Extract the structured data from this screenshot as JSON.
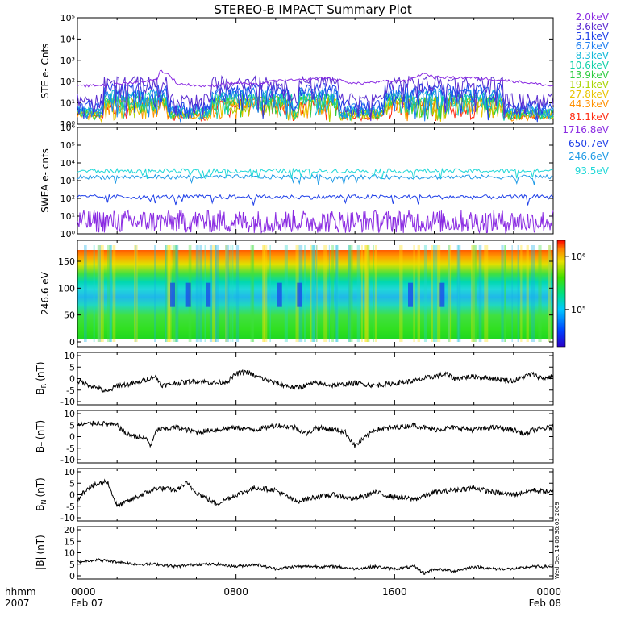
{
  "title": "STEREO-B IMPACT Summary Plot",
  "time_axis": {
    "corner_labels": [
      "hhmm",
      "2007"
    ],
    "ticks": [
      {
        "hhmm": "0000",
        "date": "Feb 07",
        "hour": 0
      },
      {
        "hhmm": "0800",
        "date": "",
        "hour": 8
      },
      {
        "hhmm": "1600",
        "date": "",
        "hour": 16
      },
      {
        "hhmm": "0000",
        "date": "Feb 08",
        "hour": 24
      }
    ],
    "range_hours": [
      0,
      24
    ]
  },
  "timestamp": "Wed Dec 14 06:30:03 2009",
  "colors": {
    "ste": [
      "#8a2be2",
      "#5a2bd0",
      "#1e3fe8",
      "#1e7ef0",
      "#10b8d8",
      "#12d0a8",
      "#2ecc40",
      "#a8d400",
      "#e8c400",
      "#ff9000",
      "#ff2a10"
    ],
    "swea": [
      "#8a2be2",
      "#1e3fe8",
      "#1e9ae6",
      "#22d8d8"
    ],
    "mag": "#000000"
  },
  "chart_data": [
    {
      "type": "line",
      "panel": "ste",
      "ylabel": "STE e- Cnts",
      "yscale": "log",
      "ylim": [
        1,
        100000
      ],
      "yticks": [
        "10⁰",
        "10¹",
        "10²",
        "10³",
        "10⁴",
        "10⁵"
      ],
      "series": [
        {
          "name": "2.0keV",
          "baseline": 70,
          "x": [
            0,
            2,
            4,
            4.2,
            5,
            6.5,
            7,
            8,
            9,
            10,
            11.5,
            12.5,
            14,
            16.8,
            17.5,
            18,
            20,
            24
          ],
          "y": [
            60,
            75,
            120,
            330,
            80,
            60,
            70,
            90,
            70,
            110,
            120,
            150,
            80,
            120,
            250,
            160,
            150,
            60
          ]
        },
        {
          "name": "3.6keV"
        },
        {
          "name": "5.1keV"
        },
        {
          "name": "6.7keV"
        },
        {
          "name": "8.3keV"
        },
        {
          "name": "10.6keV"
        },
        {
          "name": "13.9keV"
        },
        {
          "name": "19.1keV"
        },
        {
          "name": "27.8keV"
        },
        {
          "name": "44.3keV"
        },
        {
          "name": "81.1keV"
        }
      ]
    },
    {
      "type": "line",
      "panel": "swea",
      "ylabel": "SWEA e- cnts",
      "yscale": "log",
      "ylim": [
        1,
        1000000
      ],
      "yticks": [
        "10⁰",
        "10¹",
        "10²",
        "10³",
        "10⁴",
        "10⁵",
        "10⁶"
      ],
      "series": [
        {
          "name": "1716.8eV",
          "level": 5
        },
        {
          "name": "650.7eV",
          "level": 120
        },
        {
          "name": "246.6eV",
          "level": 1600
        },
        {
          "name": "93.5eV",
          "level": 3500
        }
      ]
    },
    {
      "type": "heatmap",
      "panel": "pad",
      "ylabel": "246.6 eV",
      "ylim": [
        0,
        180
      ],
      "yticks": [
        "0",
        "50",
        "100",
        "150"
      ],
      "colorbar": {
        "scale": "log",
        "range": [
          20000,
          2000000
        ],
        "ticks": [
          "10⁶",
          "10⁵"
        ],
        "tick_values": [
          1000000,
          100000
        ]
      },
      "dropout_hours": [
        4.8,
        5.6,
        6.6,
        10.2,
        11.2,
        16.8,
        18.4
      ]
    },
    {
      "type": "line",
      "panel": "br",
      "ylabel_sym": "B",
      "ylabel_sub": "R",
      "ylabel_unit": "(nT)",
      "ylim": [
        -10,
        10
      ],
      "yticks": [
        "10",
        "5",
        "0",
        "-5",
        "-10"
      ],
      "series": [
        {
          "name": "",
          "x": [
            0,
            1,
            1.5,
            2,
            3,
            3.9,
            4.3,
            5,
            6,
            7,
            7.6,
            8,
            8.5,
            9,
            10,
            11,
            12,
            13,
            14,
            15,
            16,
            17,
            18,
            18.6,
            19,
            20,
            21,
            22,
            22.9,
            23.5,
            24
          ],
          "y": [
            -1,
            -4,
            -6,
            -3,
            -2,
            1,
            -3,
            -2,
            -1,
            -2,
            -1,
            2,
            3,
            1,
            -2,
            -4,
            -2,
            -3,
            -2,
            -3,
            -2,
            -1,
            1,
            2,
            0,
            1,
            0,
            -1,
            2,
            0,
            1
          ]
        }
      ]
    },
    {
      "type": "line",
      "panel": "bt",
      "ylabel_sym": "B",
      "ylabel_sub": "T",
      "ylabel_unit": "(nT)",
      "ylim": [
        -10,
        10
      ],
      "yticks": [
        "10",
        "5",
        "0",
        "-5",
        "-10"
      ],
      "series": [
        {
          "name": "",
          "x": [
            0,
            1,
            2,
            2.5,
            3,
            3.5,
            3.7,
            4,
            5,
            6,
            7,
            8,
            9,
            10,
            11,
            11.6,
            12,
            13,
            13.5,
            14,
            15,
            16,
            17,
            18,
            19,
            20,
            21,
            22,
            22.6,
            23,
            24
          ],
          "y": [
            5,
            6,
            5,
            1,
            0,
            -1,
            -4,
            3,
            4,
            2,
            3,
            4,
            3,
            5,
            4,
            1,
            4,
            3,
            2,
            -4,
            3,
            4,
            5,
            3,
            4,
            3,
            4,
            3,
            1,
            3,
            4
          ]
        }
      ]
    },
    {
      "type": "line",
      "panel": "bn",
      "ylabel_sym": "B",
      "ylabel_sub": "N",
      "ylabel_unit": "(nT)",
      "ylim": [
        -10,
        10
      ],
      "yticks": [
        "10",
        "5",
        "0",
        "-5",
        "-10"
      ],
      "series": [
        {
          "name": "",
          "x": [
            0,
            0.5,
            1.5,
            2,
            2.5,
            3,
            4,
            5,
            5.5,
            6,
            7,
            8,
            9,
            10,
            11,
            12,
            13,
            14,
            15,
            16,
            17,
            18,
            19,
            20,
            21,
            22,
            23,
            24
          ],
          "y": [
            -2,
            3,
            6,
            -5,
            -3,
            -1,
            3,
            2,
            5,
            1,
            -4,
            0,
            3,
            2,
            -3,
            -1,
            0,
            -2,
            1,
            -1,
            -2,
            1,
            2,
            3,
            1,
            0,
            2,
            1
          ]
        }
      ]
    },
    {
      "type": "line",
      "panel": "bmag",
      "ylabel_sym": "|B|",
      "ylabel_sub": "",
      "ylabel_unit": "(nT)",
      "ylim": [
        0,
        20
      ],
      "yticks": [
        "20",
        "15",
        "10",
        "5",
        "0"
      ],
      "series": [
        {
          "name": "",
          "x": [
            0,
            1,
            2,
            3,
            4,
            5,
            6,
            7,
            8,
            9,
            10,
            11,
            12,
            13,
            14,
            15,
            16,
            17,
            17.5,
            18,
            19,
            20,
            21,
            22,
            23,
            24
          ],
          "y": [
            6,
            7,
            6,
            5,
            5,
            4,
            5,
            5,
            4,
            5,
            3,
            4,
            4,
            4,
            3,
            4,
            3,
            4,
            1,
            3,
            2,
            4,
            3,
            3,
            4,
            4
          ]
        }
      ]
    }
  ]
}
